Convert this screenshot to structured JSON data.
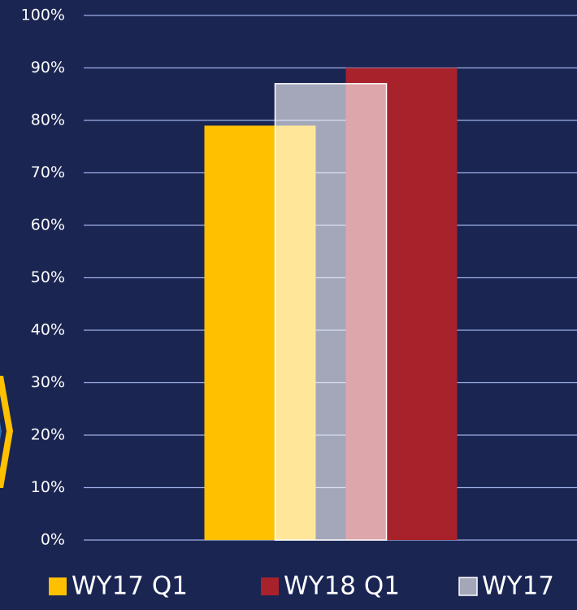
{
  "chart_data": {
    "type": "bar",
    "categories": [
      null
    ],
    "series": [
      {
        "name": "WY17 Q1",
        "color": "#ffc000",
        "opacity": 1,
        "values": [
          79
        ]
      },
      {
        "name": "WY18 Q1",
        "color": "#a8222b",
        "opacity": 1,
        "values": [
          90
        ]
      },
      {
        "name": "WY17",
        "color": "#ffffff",
        "opacity": 0.6,
        "values": [
          87
        ]
      }
    ],
    "ylim": [
      0,
      100
    ],
    "yticks": [
      {
        "value": 0,
        "label": "0%"
      },
      {
        "value": 10,
        "label": "10%"
      },
      {
        "value": 20,
        "label": "20%"
      },
      {
        "value": 30,
        "label": "30%"
      },
      {
        "value": 40,
        "label": "40%"
      },
      {
        "value": 50,
        "label": "50%"
      },
      {
        "value": 60,
        "label": "60%"
      },
      {
        "value": 70,
        "label": "70%"
      },
      {
        "value": 80,
        "label": "80%"
      },
      {
        "value": 90,
        "label": "90%"
      },
      {
        "value": 100,
        "label": "100%"
      }
    ],
    "grid": true
  }
}
